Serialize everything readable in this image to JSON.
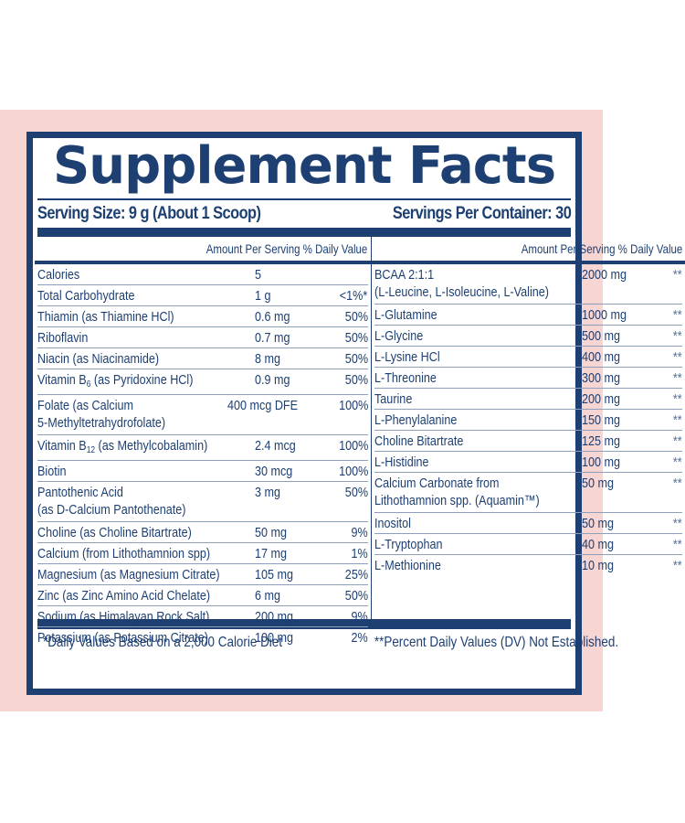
{
  "panel": {
    "title": "Supplement Facts",
    "serving_size": "Serving Size: 9 g (About 1 Scoop)",
    "servings_per_container": "Servings Per Container: 30",
    "colors": {
      "navy": "#1d3f72",
      "pink_background": "#f7d5d2",
      "row_divider": "#8d9fbb"
    }
  },
  "left_column": {
    "header": "Amount Per Serving  % Daily Value",
    "rows": [
      {
        "name": "Calories",
        "amount": "5",
        "dv": ""
      },
      {
        "name": "Total Carbohydrate",
        "amount": "1 g",
        "dv": "<1%*"
      },
      {
        "name": "Thiamin (as Thiamine HCl)",
        "amount": "0.6 mg",
        "dv": "50%"
      },
      {
        "name": "Riboflavin",
        "amount": "0.7 mg",
        "dv": "50%"
      },
      {
        "name": "Niacin (as Niacinamide)",
        "amount": "8 mg",
        "dv": "50%"
      },
      {
        "name_pre": "Vitamin B",
        "name_sub": "6",
        "name_post": " (as Pyridoxine HCl)",
        "amount": "0.9 mg",
        "dv": "50%"
      },
      {
        "name": "Folate (as Calcium",
        "name_line2": "5-Methyltetrahydrofolate)",
        "amount": "400 mcg DFE",
        "dv": "100%"
      },
      {
        "name_pre": "Vitamin B",
        "name_sub": "12",
        "name_post": " (as Methylcobalamin)",
        "amount": "2.4 mcg",
        "dv": "100%"
      },
      {
        "name": "Biotin",
        "amount": "30 mcg",
        "dv": "100%"
      },
      {
        "name": "Pantothenic Acid",
        "name_line2": "(as D-Calcium Pantothenate)",
        "amount": "3 mg",
        "dv": "50%"
      },
      {
        "name": "Choline (as Choline Bitartrate)",
        "amount": "50 mg",
        "dv": "9%"
      },
      {
        "name": "Calcium (from Lithothamnion spp)",
        "amount": "17 mg",
        "dv": "1%"
      },
      {
        "name": "Magnesium (as Magnesium Citrate)",
        "amount": "105 mg",
        "dv": "25%"
      },
      {
        "name": "Zinc (as Zinc Amino Acid Chelate)",
        "amount": "6 mg",
        "dv": "50%"
      },
      {
        "name": "Sodium (as Himalayan Rock Salt)",
        "amount": "200 mg",
        "dv": "9%"
      },
      {
        "name": "Potassium (as Potassium Citrate)",
        "amount": "100 mg",
        "dv": "2%"
      }
    ]
  },
  "right_column": {
    "header": "Amount Per Serving  % Daily Value",
    "rows": [
      {
        "name": "BCAA 2:1:1",
        "name_line2": "(L-Leucine, L-Isoleucine, L-Valine)",
        "amount": "2000 mg",
        "dv": "**"
      },
      {
        "name": "L-Glutamine",
        "amount": "1000 mg",
        "dv": "**"
      },
      {
        "name": "L-Glycine",
        "amount": "500 mg",
        "dv": "**"
      },
      {
        "name": "L-Lysine HCl",
        "amount": "400 mg",
        "dv": "**"
      },
      {
        "name": "L-Threonine",
        "amount": "300 mg",
        "dv": "**"
      },
      {
        "name": "Taurine",
        "amount": "200 mg",
        "dv": "**"
      },
      {
        "name": "L-Phenylalanine",
        "amount": "150 mg",
        "dv": "**"
      },
      {
        "name": "Choline Bitartrate",
        "amount": "125 mg",
        "dv": "**"
      },
      {
        "name": "L-Histidine",
        "amount": "100 mg",
        "dv": "**"
      },
      {
        "name": "Calcium Carbonate from",
        "name_line2": "Lithothamnion spp. (Aquamin™)",
        "amount": "50 mg",
        "dv": "**"
      },
      {
        "name": "Inositol",
        "amount": "50 mg",
        "dv": "**"
      },
      {
        "name": "L-Tryptophan",
        "amount": "40 mg",
        "dv": "**"
      },
      {
        "name": "L-Methionine",
        "amount": "10 mg",
        "dv": "**"
      }
    ]
  },
  "footer": {
    "left_note": "*Daily Values Based on a 2,000 Calorie Diet",
    "right_note": "**Percent Daily Values (DV) Not Established."
  }
}
